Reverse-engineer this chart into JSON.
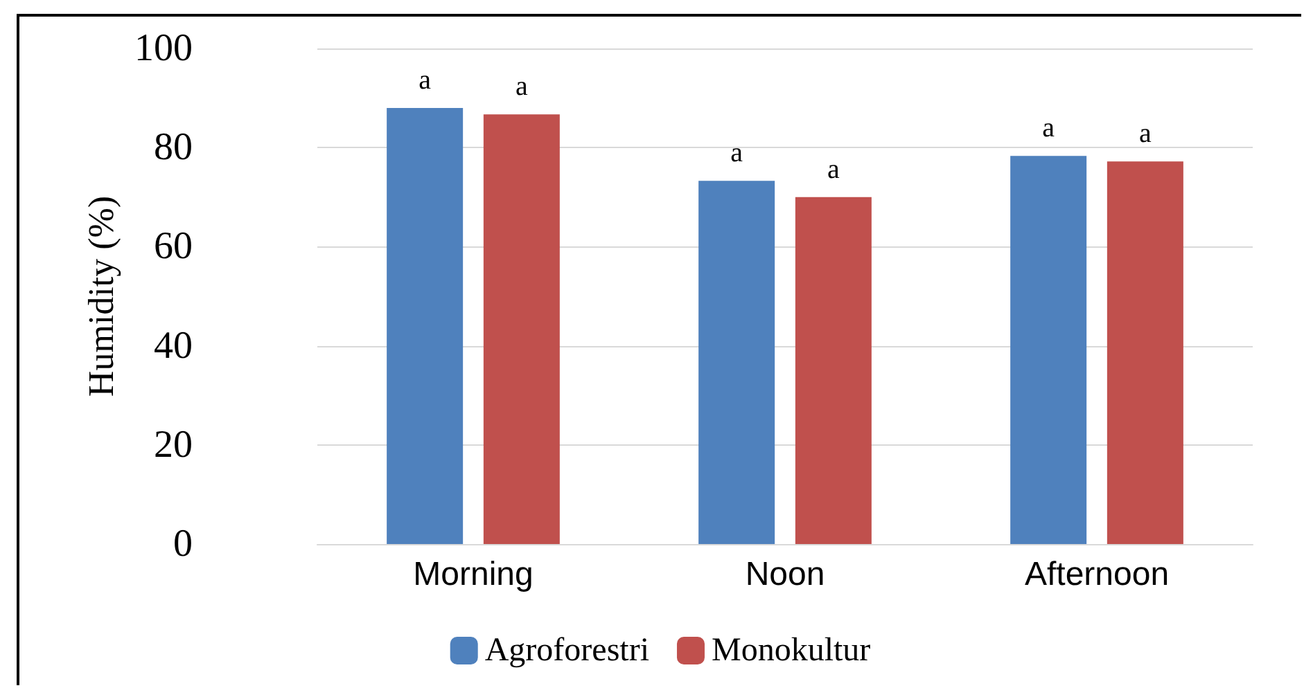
{
  "chart_data": {
    "type": "bar",
    "ylabel": "Humidity (%)",
    "categories": [
      "Morning",
      "Noon",
      "Afternoon"
    ],
    "series": [
      {
        "name": "Agroforestri",
        "color": "#4f81bd",
        "values": [
          88,
          73.3,
          78.3
        ],
        "value_labels": [
          "a",
          "a",
          "a"
        ]
      },
      {
        "name": "Monokultur",
        "color": "#c0504d",
        "values": [
          86.7,
          70,
          77.2
        ],
        "value_labels": [
          "a",
          "a",
          "a"
        ]
      }
    ],
    "ylim": [
      0,
      100
    ],
    "yticks": [
      0,
      20,
      40,
      60,
      80,
      100
    ],
    "grid": "y",
    "legend": "bottom"
  }
}
